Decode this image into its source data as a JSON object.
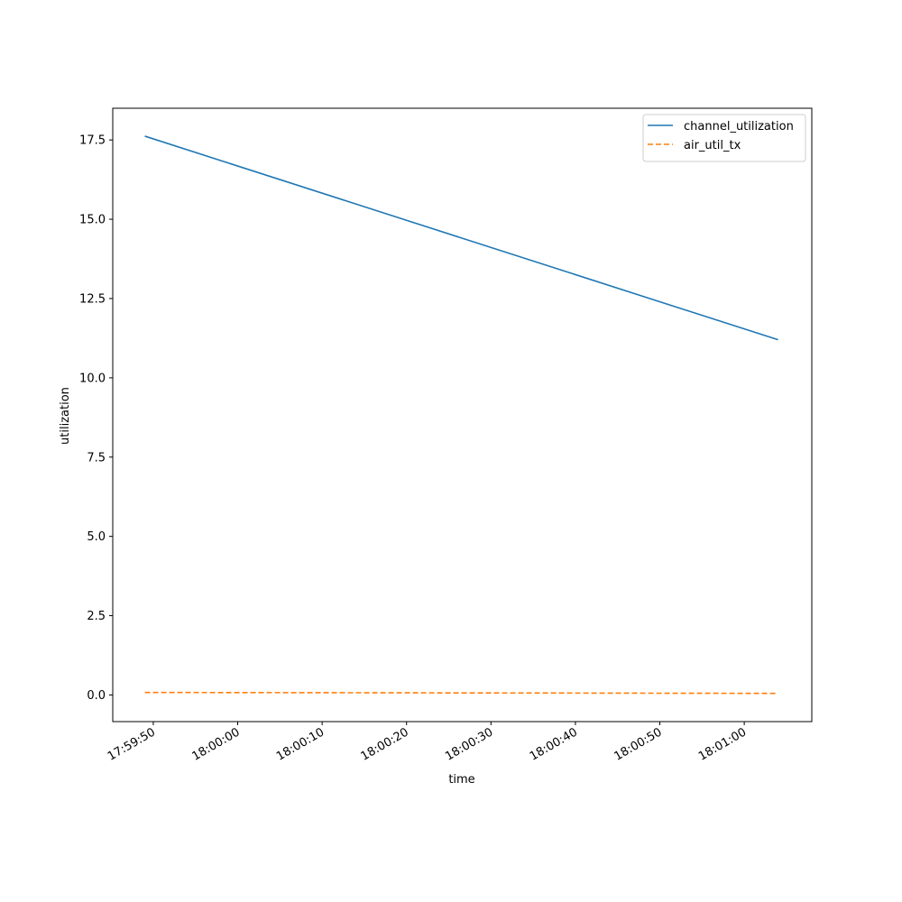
{
  "chart_data": {
    "type": "line",
    "title": "",
    "xlabel": "time",
    "ylabel": "utilization",
    "x": [
      "17:59:49",
      "18:01:04"
    ],
    "xlim": [
      "17:59:45.2",
      "18:01:08.0"
    ],
    "ylim": [
      -0.84,
      18.5
    ],
    "x_ticks": [
      "17:59:50",
      "18:00:00",
      "18:00:10",
      "18:00:20",
      "18:00:30",
      "18:00:40",
      "18:00:50",
      "18:01:00"
    ],
    "y_ticks": [
      "0.0",
      "2.5",
      "5.0",
      "7.5",
      "10.0",
      "12.5",
      "15.0",
      "17.5"
    ],
    "grid": false,
    "legend_position": "upper right",
    "series": [
      {
        "name": "channel_utilization",
        "color": "#1f77b4",
        "line_style": "solid",
        "values": [
          17.62,
          11.2
        ]
      },
      {
        "name": "air_util_tx",
        "color": "#ff7f0e",
        "line_style": "dashed",
        "values": [
          0.08,
          0.05
        ]
      }
    ]
  }
}
